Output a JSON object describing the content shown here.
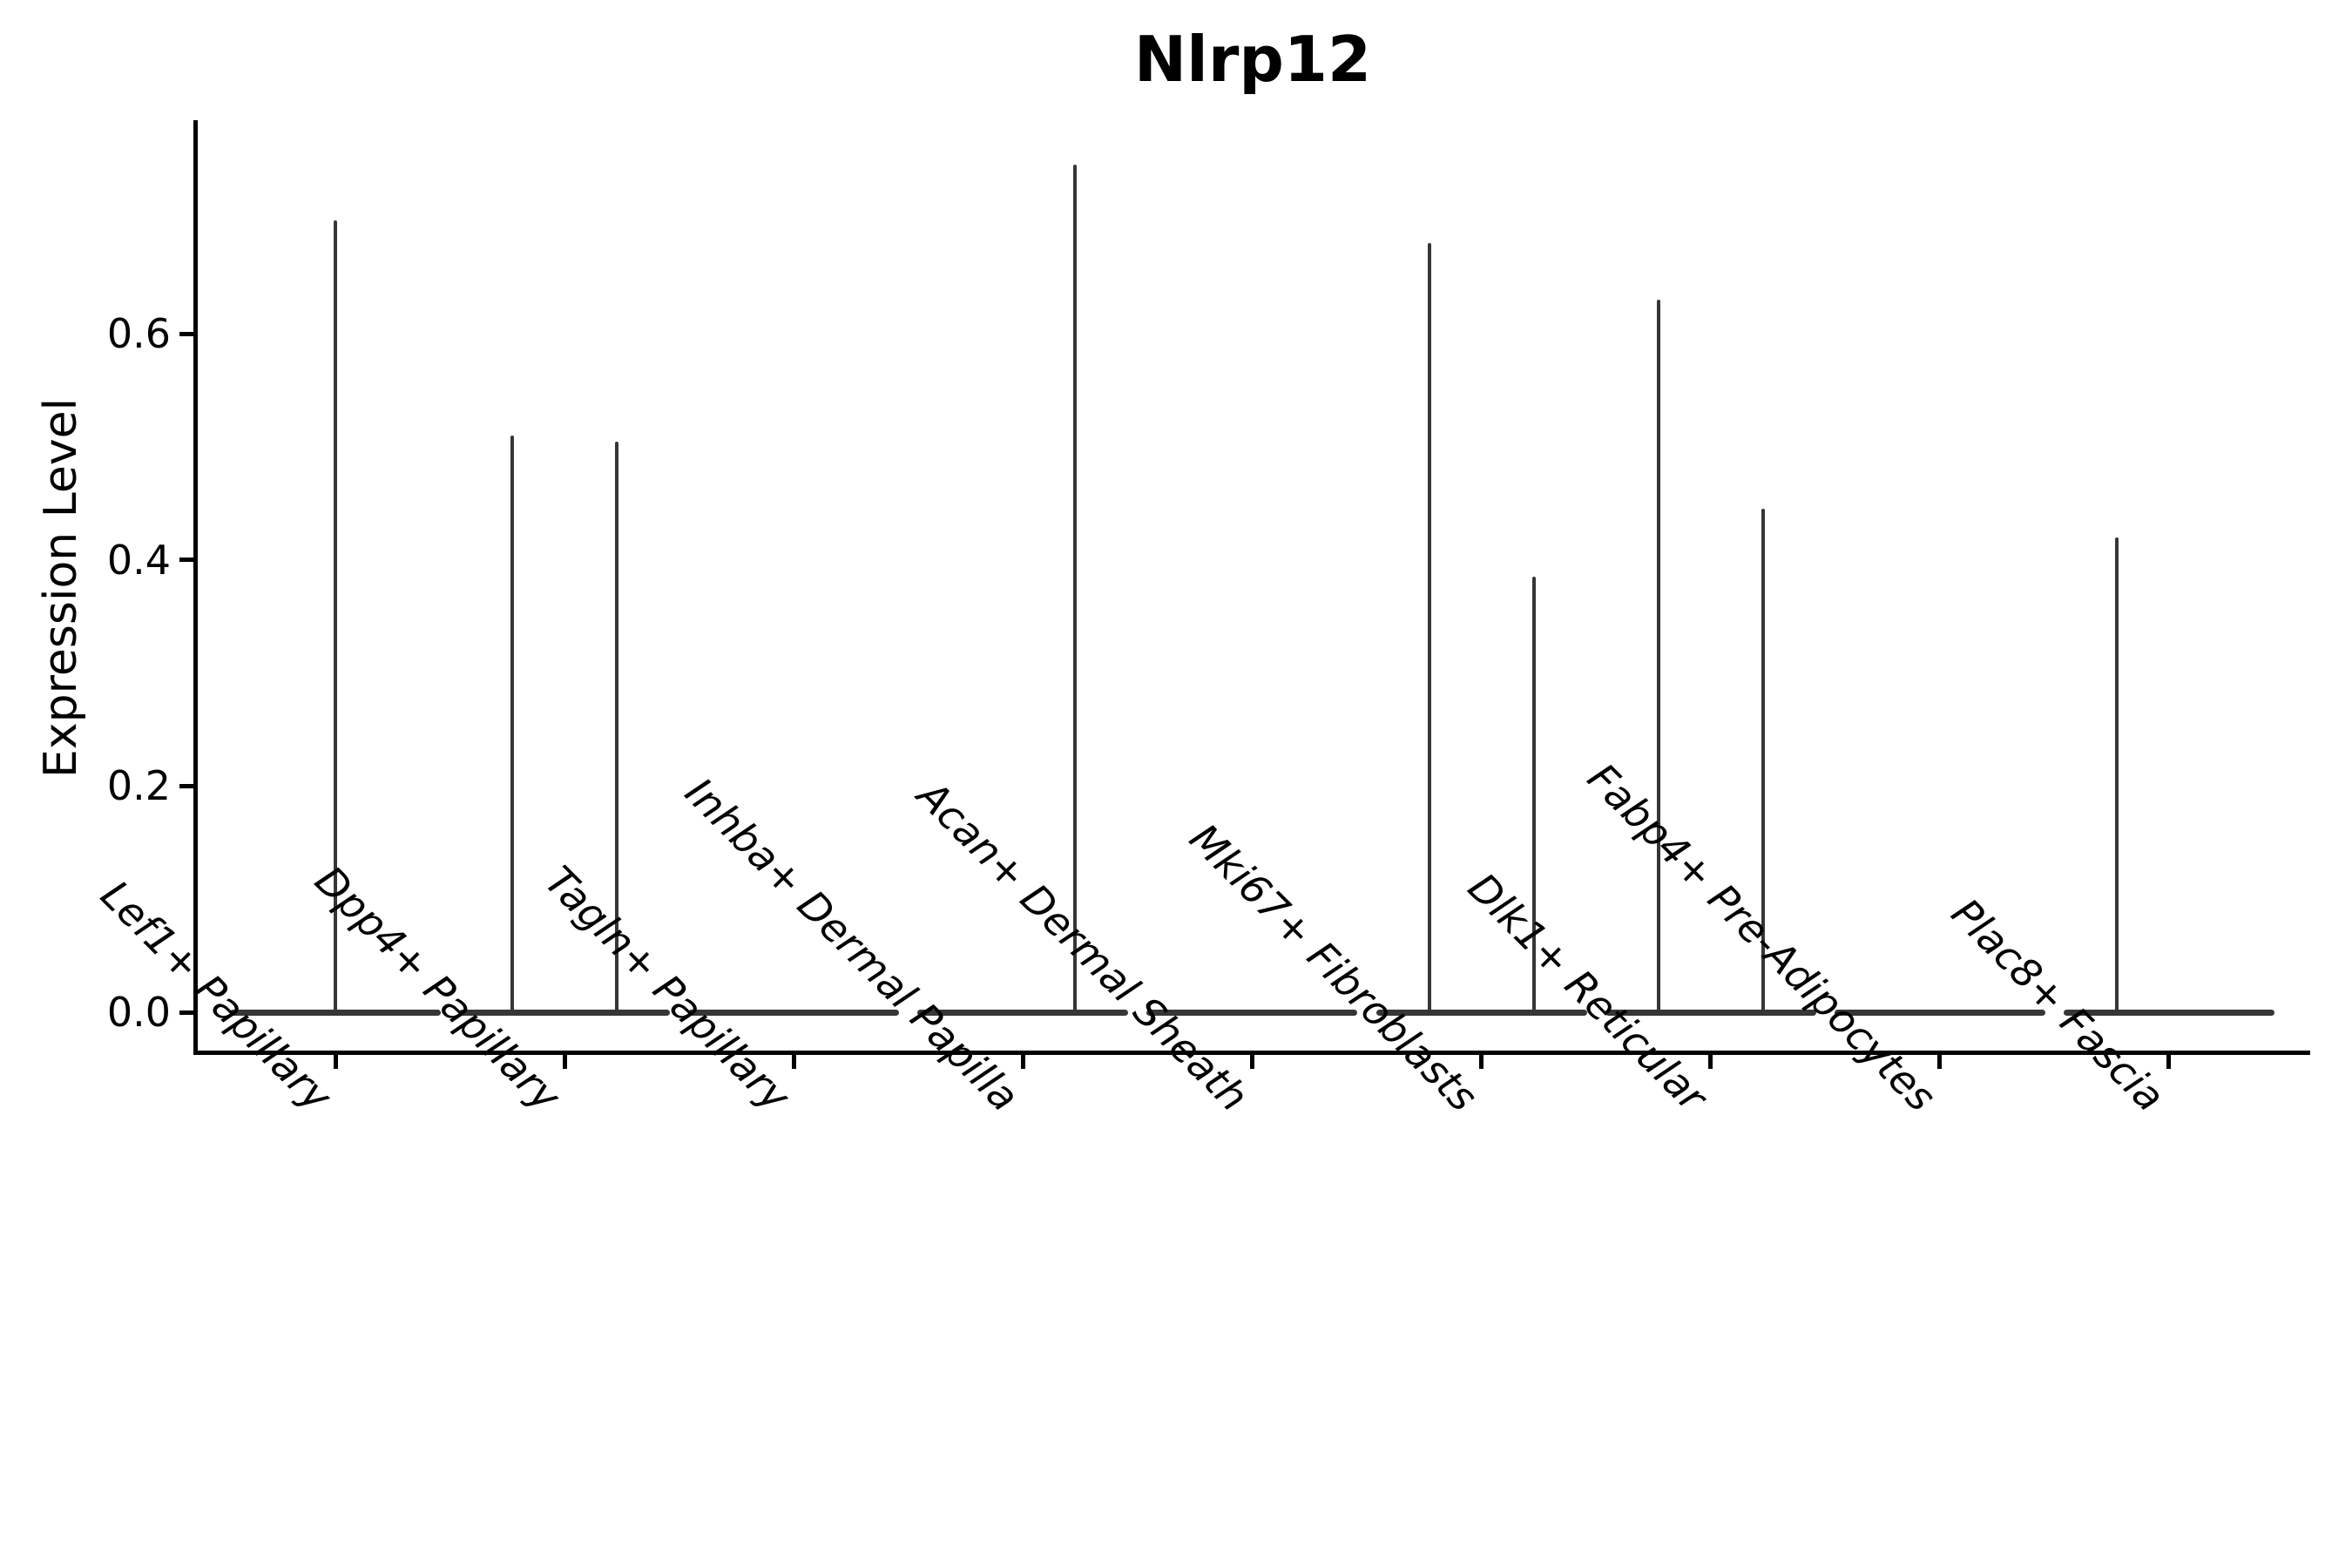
{
  "chart_data": {
    "type": "violin",
    "title": "Nlrp12",
    "ylabel": "Expression Level",
    "xlabel": "",
    "yticks": [
      0.0,
      0.2,
      0.4,
      0.6
    ],
    "ylim": [
      0,
      0.79
    ],
    "grid": false,
    "legend": "none",
    "categories": [
      "Lef1+ Papillary",
      "Dpp4+ Papillary",
      "Tagln+ Papillary",
      "Inhba+ Dermal Papilla",
      "Acan+ Dermal Sheath",
      "Mki67+ Fibroblasts",
      "Dlk1+ Reticular",
      "Fabp4+ Pre-Adipocytes",
      "Plac8+ Fascia"
    ],
    "violins": [
      {
        "category": "Lef1+ Papillary",
        "baseline_value": 0.0,
        "spikes": [
          {
            "position": "center",
            "max": 0.7
          }
        ]
      },
      {
        "category": "Dpp4+ Papillary",
        "baseline_value": 0.0,
        "spikes": [
          {
            "position": "left",
            "max": 0.51
          },
          {
            "position": "right",
            "max": 0.505
          }
        ]
      },
      {
        "category": "Tagln+ Papillary",
        "baseline_value": 0.0,
        "spikes": []
      },
      {
        "category": "Inhba+ Dermal Papilla",
        "baseline_value": 0.0,
        "spikes": [
          {
            "position": "right",
            "max": 0.75
          }
        ]
      },
      {
        "category": "Acan+ Dermal Sheath",
        "baseline_value": 0.0,
        "spikes": []
      },
      {
        "category": "Mki67+ Fibroblasts",
        "baseline_value": 0.0,
        "spikes": [
          {
            "position": "left",
            "max": 0.68
          },
          {
            "position": "right",
            "max": 0.385
          }
        ]
      },
      {
        "category": "Dlk1+ Reticular",
        "baseline_value": 0.0,
        "spikes": [
          {
            "position": "left",
            "max": 0.63
          },
          {
            "position": "right",
            "max": 0.445
          }
        ]
      },
      {
        "category": "Fabp4+ Pre-Adipocytes",
        "baseline_value": 0.0,
        "spikes": []
      },
      {
        "category": "Plac8+ Fascia",
        "baseline_value": 0.0,
        "spikes": [
          {
            "position": "left",
            "max": 0.42
          }
        ]
      }
    ],
    "colors": {
      "violin": "#363636",
      "axis": "#000000",
      "text": "#000000",
      "background": "#ffffff"
    }
  }
}
